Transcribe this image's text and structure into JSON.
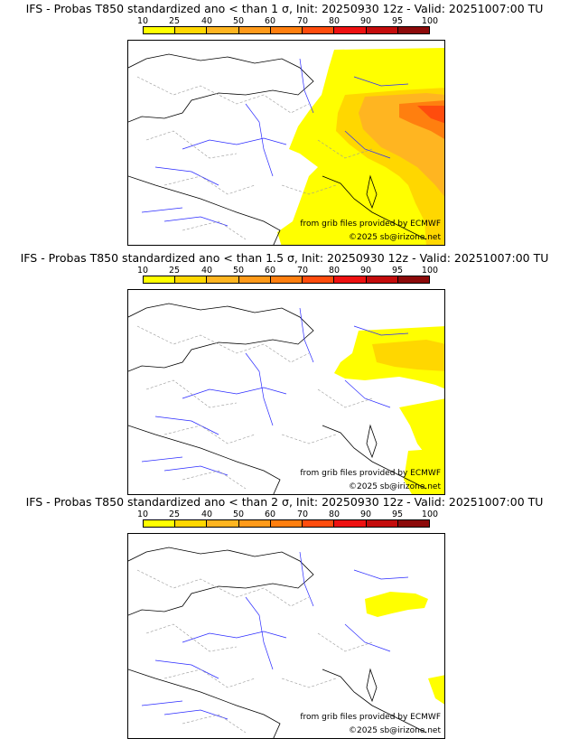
{
  "colors": {
    "c10": "#ffff00",
    "c25": "#ffd700",
    "c40": "#ffb521",
    "c50": "#ff9a1a",
    "c60": "#ff7f0f",
    "c70": "#ff4c0d",
    "c80": "#ee1111",
    "c90": "#c40c0c",
    "c95": "#8c0a0a",
    "c100": "#5a0000"
  },
  "colorbar": {
    "ticks": [
      "10",
      "25",
      "40",
      "50",
      "60",
      "70",
      "80",
      "90",
      "95",
      "100"
    ]
  },
  "panels": [
    {
      "title": "IFS - Probas T850  standardized ano < than 1 σ, Init: 20250930 12z - Valid: 20251007:00 TU",
      "credit_source": "from grib files provided by ECMWF",
      "credit_copyright": "©2025 sb@irizone.net"
    },
    {
      "title": "IFS - Probas T850  standardized ano < than 1.5 σ, Init: 20250930 12z - Valid: 20251007:00 TU",
      "credit_source": "from grib files provided by ECMWF",
      "credit_copyright": "©2025 sb@irizone.net"
    },
    {
      "title": "IFS - Probas T850  standardized ano < than 2 σ, Init: 20250930 12z - Valid: 20251007:00 TU",
      "credit_source": "from grib files provided by ECMWF",
      "credit_copyright": "©2025 sb@irizone.net"
    }
  ]
}
